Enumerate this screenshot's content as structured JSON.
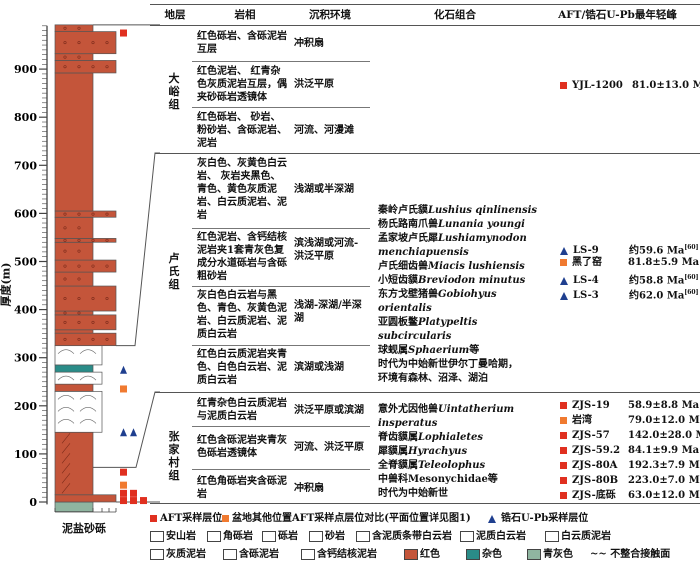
{
  "header": {
    "stratum": "地层",
    "lithofacies": "岩相",
    "environment": "沉积环境",
    "fossils": "化石组合",
    "ages": "AFT/锆石U-Pb最年轻峰"
  },
  "axis": {
    "label": "厚度(m)",
    "ticks": [
      0,
      100,
      200,
      300,
      400,
      500,
      600,
      700,
      800,
      900
    ],
    "range": [
      -20,
      995
    ]
  },
  "grain_scale_label": "泥盐砂砾",
  "colors": {
    "red": "#c4553a",
    "mixed": "#2a8c88",
    "bluegray": "#8fb5a0",
    "aft": "#e03020",
    "aft_other": "#f07a30",
    "zircon": "#1f3f8f"
  },
  "column_layers": [
    {
      "from": -20,
      "to": 0,
      "grain": "mud",
      "fill": "bluegray",
      "litho": "andesite"
    },
    {
      "from": 0,
      "to": 15,
      "grain": "gravel",
      "fill": "red",
      "litho": "breccia"
    },
    {
      "from": 15,
      "to": 145,
      "grain": "mud",
      "fill": "red",
      "litho": "dolomitic-mudstone"
    },
    {
      "from": 145,
      "to": 230,
      "grain": "medium",
      "fill": "white",
      "litho": "banded-dolomite"
    },
    {
      "from": 230,
      "to": 245,
      "grain": "mud",
      "fill": "red",
      "litho": "calcareous-nodule-mudstone"
    },
    {
      "from": 245,
      "to": 270,
      "grain": "medium",
      "fill": "white",
      "litho": "banded-dolomite"
    },
    {
      "from": 270,
      "to": 285,
      "grain": "mud",
      "fill": "mixed",
      "litho": "calcareous-mudstone"
    },
    {
      "from": 285,
      "to": 325,
      "grain": "medium",
      "fill": "white",
      "litho": "banded-dolomite"
    },
    {
      "from": 325,
      "to": 351,
      "grain": "gravel",
      "fill": "red",
      "litho": "conglomerate"
    },
    {
      "from": 351,
      "to": 358,
      "grain": "mud",
      "fill": "red",
      "litho": "mudstone"
    },
    {
      "from": 358,
      "to": 389,
      "grain": "gravel",
      "fill": "red",
      "litho": "conglomerate"
    },
    {
      "from": 389,
      "to": 397,
      "grain": "mud",
      "fill": "red",
      "litho": "gravelly-mudstone"
    },
    {
      "from": 397,
      "to": 449,
      "grain": "gravel",
      "fill": "red",
      "litho": "conglomerate"
    },
    {
      "from": 449,
      "to": 478,
      "grain": "mud",
      "fill": "red",
      "litho": "gravelly-mudstone"
    },
    {
      "from": 478,
      "to": 503,
      "grain": "gravel",
      "fill": "red",
      "litho": "conglomerate"
    },
    {
      "from": 503,
      "to": 540,
      "grain": "mud",
      "fill": "red",
      "litho": "gravelly-mudstone"
    },
    {
      "from": 540,
      "to": 548,
      "grain": "gravel",
      "fill": "red",
      "litho": "conglomerate"
    },
    {
      "from": 548,
      "to": 592,
      "grain": "mud",
      "fill": "red",
      "litho": "gravelly-mudstone"
    },
    {
      "from": 592,
      "to": 605,
      "grain": "gravel",
      "fill": "red",
      "litho": "conglomerate"
    },
    {
      "from": 605,
      "to": 892,
      "grain": "mud",
      "fill": "red",
      "litho": "mudstone"
    },
    {
      "from": 892,
      "to": 918,
      "grain": "gravel",
      "fill": "red",
      "litho": "conglomerate"
    },
    {
      "from": 918,
      "to": 932,
      "grain": "mud",
      "fill": "red",
      "litho": "gravelly-mudstone"
    },
    {
      "from": 932,
      "to": 978,
      "grain": "gravel",
      "fill": "red",
      "litho": "conglomerate"
    },
    {
      "from": 978,
      "to": 992,
      "grain": "mud",
      "fill": "red",
      "litho": "gravelly-mudstone"
    }
  ],
  "markers": [
    {
      "m": 975,
      "type": "aft",
      "slot": 0
    },
    {
      "m": 235,
      "type": "aft_other",
      "slot": 0
    },
    {
      "m": 275,
      "type": "zircon",
      "slot": 0
    },
    {
      "m": 145,
      "type": "zircon",
      "slot": 0
    },
    {
      "m": 145,
      "type": "zircon",
      "slot": 1
    },
    {
      "m": 62,
      "type": "aft",
      "slot": 0
    },
    {
      "m": 35,
      "type": "aft_other",
      "slot": 0
    },
    {
      "m": 18,
      "type": "aft",
      "slot": 0
    },
    {
      "m": 18,
      "type": "aft",
      "slot": 1
    },
    {
      "m": 3,
      "type": "aft",
      "slot": 0
    },
    {
      "m": 3,
      "type": "aft",
      "slot": 1
    },
    {
      "m": 3,
      "type": "aft",
      "slot": 2
    }
  ],
  "formations": [
    {
      "name": "大峪组",
      "rows": [
        {
          "litho": "红色砾岩、含砾泥岩互层",
          "env": "冲积扇"
        },
        {
          "litho": "红色泥岩、 红青杂色灰质泥岩互层，偶夹砂砾岩透镜体",
          "env": "洪泛平原"
        },
        {
          "litho": "红色砾岩、 砂岩、粉砂岩、含砾泥岩、泥岩",
          "env": "河流、河漫滩"
        }
      ],
      "fossils": [],
      "ages": [
        {
          "icon": "aft",
          "sample": "YJL-1200",
          "age": "81.0±13.0 Ma"
        }
      ]
    },
    {
      "name": "卢氏组",
      "rows": [
        {
          "litho": "灰白色、灰黄色白云岩、 灰岩夹黑色、青色、黄色灰质泥岩、白云质泥岩、泥岩",
          "env": "浅湖或半深湖"
        },
        {
          "litho": "红色泥岩、含钙结核泥岩夹1套青灰色复成分水道砾岩与含砾粗砂岩",
          "env": "滨浅湖或河流-洪泛平原"
        },
        {
          "litho": "灰白色白云岩与黑色、青色、灰黄色泥岩、白云质泥岩、泥质白云岩",
          "env": "浅湖-深湖/半深湖"
        },
        {
          "litho": "红色白云质泥岩夹青色、白色白云岩、泥质白云岩",
          "env": "滨湖或浅湖"
        }
      ],
      "fossils": [
        [
          "秦岭卢氏貘",
          "Lushius qinlinensis"
        ],
        [
          "杨氏路南爪兽",
          "Lunania youngi"
        ],
        [
          "孟家坡卢氏犀",
          "Lushiamynodon menchiapuensis"
        ],
        [
          "卢氏细齿兽",
          "Miacis lushiensis"
        ],
        [
          "小短齿貘",
          "Breviodon minutus"
        ],
        [
          "东方戈壁猪兽",
          "Gobiohyus orientalis"
        ],
        [
          "亚圆板鳖",
          "Platypeltis subcircularis"
        ],
        [
          "球蚬属",
          "Sphaerium",
          "等"
        ],
        [
          "时代为中始新世伊尔丁曼哈期，"
        ],
        [
          "环境有森林、沼泽、湖泊"
        ]
      ],
      "ages": [
        {
          "icon": "zircon",
          "sample": "LS-9",
          "age": "约59.6 Ma",
          "ref": "[60]"
        },
        {
          "icon": "aft_other",
          "sample": "黑了窑",
          "age": "81.8±5.9 Ma"
        },
        {
          "icon": "zircon",
          "sample": "LS-4",
          "age": "约58.8 Ma",
          "ref": "[60]"
        },
        {
          "icon": "zircon",
          "sample": "LS-3",
          "age": "约62.0 Ma",
          "ref": "[60]"
        }
      ]
    },
    {
      "name": "张家村组",
      "rows": [
        {
          "litho": "红青杂色白云质泥岩与泥质白云岩",
          "env": "洪泛平原或滨湖"
        },
        {
          "litho": "红色含砾泥岩夹青灰色砾岩透镜体",
          "env": "河流、洪泛平原"
        },
        {
          "litho": "红色角砾岩夹含砾泥岩",
          "env": "冲积扇"
        }
      ],
      "fossils": [
        [
          "意外尤因他兽",
          "Uintatherium insperatus"
        ],
        [
          "脊齿貘属",
          "Lophialetes"
        ],
        [
          "犀貘属",
          "Hyrachyus"
        ],
        [
          "全脊貘属",
          "Teleolophus"
        ],
        [
          "中兽科Mesonychidae等"
        ],
        [
          "时代为中始新世"
        ]
      ],
      "ages": [
        {
          "icon": "aft",
          "sample": "ZJS-19",
          "age": "58.9±8.8 Ma"
        },
        {
          "icon": "aft_other",
          "sample": "岩湾",
          "age": "79.0±12.0 Ma"
        },
        {
          "icon": "aft",
          "sample": "ZJS-57",
          "age": "142.0±28.0 Ma"
        },
        {
          "icon": "aft",
          "sample": "ZJS-59.2",
          "age": "84.1±9.9 Ma"
        },
        {
          "icon": "aft",
          "sample": "ZJS-80A",
          "age": "192.3±7.9 Ma"
        },
        {
          "icon": "aft",
          "sample": "ZJS-80B",
          "age": "223.0±7.0 Ma"
        },
        {
          "icon": "aft",
          "sample": "ZJS-底砾",
          "age": "63.0±12.0 Ma"
        }
      ]
    }
  ],
  "legend": {
    "symbols": [
      {
        "icon": "aft",
        "label": "AFT采样层位"
      },
      {
        "icon": "aft_other",
        "label": "盆地其他位置AFT采样点层位对比(平面位置详见图1)"
      },
      {
        "icon": "zircon",
        "label": "锆石U-Pb采样层位"
      }
    ],
    "lithology": [
      "安山岩",
      "角砾岩",
      "砾岩",
      "砂岩",
      "含泥质条带白云岩",
      "泥质白云岩",
      "白云质泥岩",
      "灰质泥岩",
      "含砾泥岩",
      "含钙结核泥岩"
    ],
    "colors": [
      {
        "fill": "red",
        "label": "红色"
      },
      {
        "fill": "mixed",
        "label": "杂色"
      },
      {
        "fill": "bluegray",
        "label": "青灰色"
      }
    ],
    "unconformity": "不整合接触面"
  }
}
